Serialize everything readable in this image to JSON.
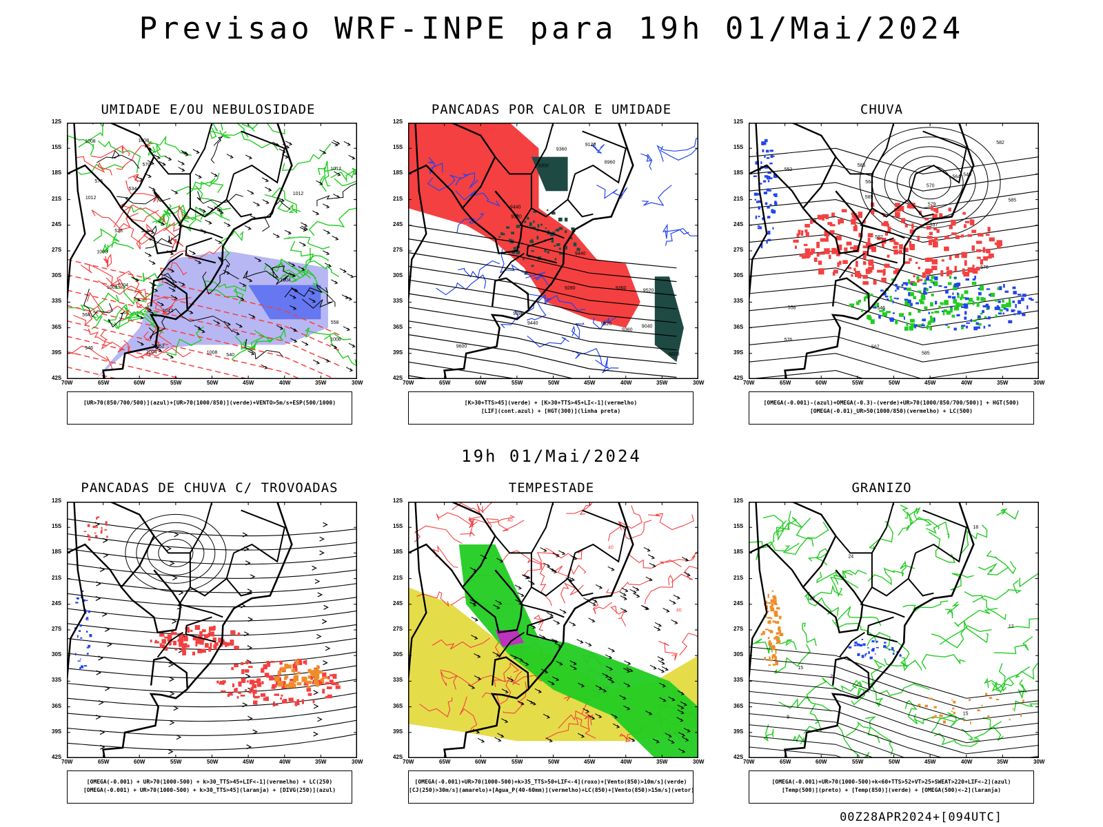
{
  "header": {
    "title": "Previsao WRF-INPE  para 19h 01/Mai/2024"
  },
  "mid_date": "19h 01/Mai/2024",
  "footer": "00Z28APR2024+[094UTC]",
  "axes": {
    "lat_ticks": [
      "12S",
      "15S",
      "18S",
      "21S",
      "24S",
      "27S",
      "30S",
      "33S",
      "36S",
      "39S",
      "42S"
    ],
    "lon_ticks": [
      "70W",
      "65W",
      "60W",
      "55W",
      "50W",
      "45W",
      "40W",
      "35W",
      "30W"
    ]
  },
  "panels": [
    {
      "id": "umidade",
      "title": "UMIDADE E/OU NEBULOSIDADE",
      "caption": [
        "[UR>70(850/700/500)](azul)+[UR>70(1000/850)](verde)+VENTO>5m/s+ESP(500/1000)"
      ],
      "contour_labels": [
        "1012",
        "1008",
        "1008",
        "1012",
        "1012",
        "1008",
        "1004",
        "1008",
        "1008",
        "1012",
        "1008",
        "1004",
        "1004",
        "570",
        "576",
        "564",
        "558",
        "552",
        "546",
        "540",
        "534",
        "528"
      ]
    },
    {
      "id": "pancadas_calor",
      "title": "PANCADAS POR CALOR E UMIDADE",
      "caption": [
        "[K>30+TTS>45](verde) + [K>30+TTS>45+LI<-1](vermelho)",
        "[LIF](cont.azul) + [HGT(300)](linha preta)"
      ],
      "contour_labels": [
        "9600",
        "9520",
        "9440",
        "9280",
        "9200",
        "9120",
        "9040",
        "8960",
        "9360",
        "9280",
        "9600",
        "9520",
        "9440",
        "9360",
        "9520",
        "9440",
        "9360"
      ]
    },
    {
      "id": "chuva",
      "title": "CHUVA",
      "caption": [
        "[OMEGA(-0.001)-(azul)+OMEGA(-0.3)-(verde)+UR>70(1000/850/700/500)] + HGT(500)",
        "[OMEGA(-0.01)_UR>50(1000/850)(vermelho) + LC(500)"
      ],
      "contour_labels": [
        "585",
        "585",
        "585",
        "582",
        "576",
        "570",
        "564",
        "558",
        "552",
        "546",
        "540",
        "537",
        "585",
        "582",
        "579",
        "576",
        "567",
        "564"
      ]
    },
    {
      "id": "trovoadas",
      "title": "PANCADAS DE CHUVA C/ TROVOADAS",
      "caption": [
        "[OMEGA(-0.001) + UR>70(1000-500) + k>30_TTS>45+LIF<-1](vermelho) + LC(250)",
        "[OMEGA(-0.001) + UR>70(1000-500) + k>30_TTS>45](laranja) + [DIVG(250)](azul)"
      ],
      "contour_labels": []
    },
    {
      "id": "tempestade",
      "title": "TEMPESTADE",
      "caption": [
        "[OMEGA(-0.001)+UR>70(1000-500)+k>35_TTS>50+LIF<-4](roxo)+[Vento(850)>10m/s](verde)",
        "[CJ(250)>30m/s](amarelo)+[Agua_P(40-60mm)](vermelho)+LC(850)+[Vento(850)>15m/s](vetor)"
      ],
      "contour_labels": [
        "40",
        "40",
        "40"
      ]
    },
    {
      "id": "granizo",
      "title": "GRANIZO",
      "caption": [
        "[OMEGA(-0.001)+UR>70(1000-500)+k<60+TTS>52+VT>25+SWEAT>220+LIF<-2](azul)",
        "[Temp(500)](preto) + [Temp(850)](verde) + [OMEGA(500)<-2](laranja)"
      ],
      "contour_labels": [
        "18",
        "21",
        "24",
        "15",
        "12",
        "15",
        "12",
        "9"
      ]
    }
  ],
  "colors": {
    "red": "#f44040",
    "green": "#22cc22",
    "blue": "#2244ee",
    "lavender": "#9999ee",
    "darkgreen": "#1f4a44",
    "yellow": "#e2d836",
    "orange": "#f08c28",
    "purple": "#cc22cc"
  }
}
